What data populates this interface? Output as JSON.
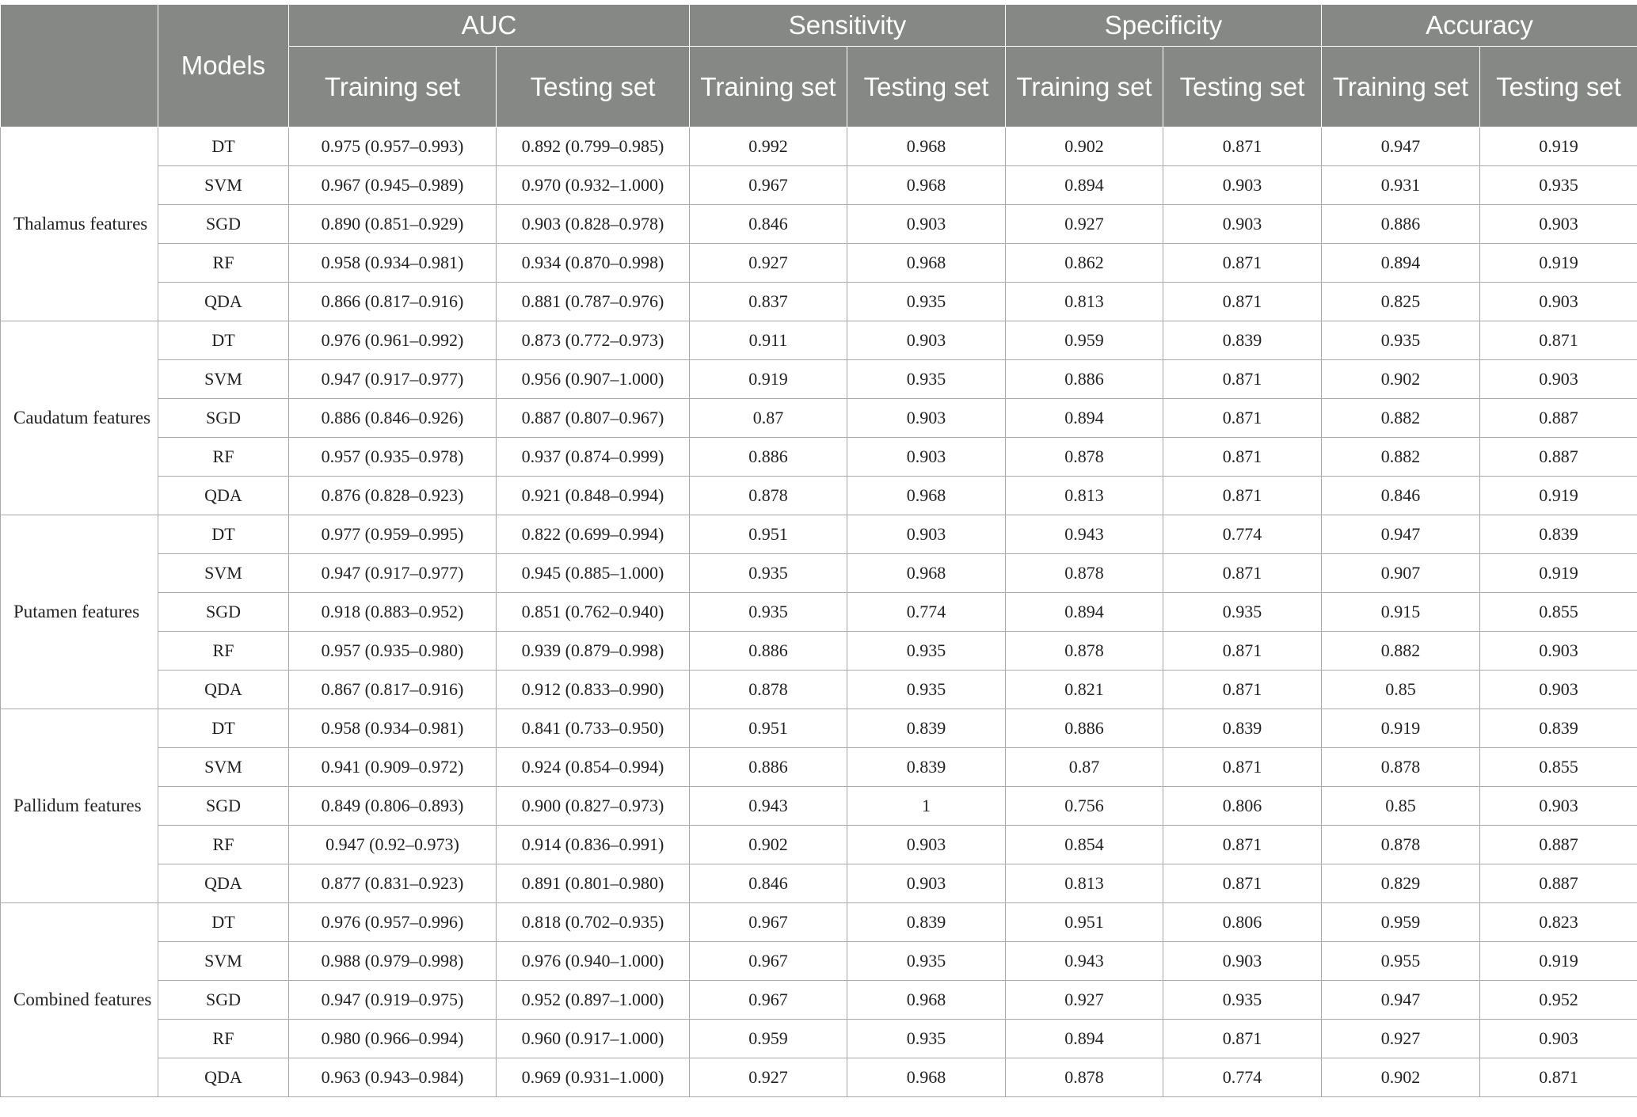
{
  "header": {
    "models": "Models",
    "metrics": [
      "AUC",
      "Sensitivity",
      "Specificity",
      "Accuracy"
    ],
    "subcols": [
      [
        "Training set",
        "Testing set"
      ],
      [
        "Training set",
        "Testing set"
      ],
      [
        "Training set",
        "Testing set"
      ],
      [
        "Training set",
        "Testing set"
      ]
    ]
  },
  "groups": [
    {
      "label": "Thalamus features",
      "rows": [
        [
          "DT",
          "0.975 (0.957–0.993)",
          "0.892 (0.799–0.985)",
          "0.992",
          "0.968",
          "0.902",
          "0.871",
          "0.947",
          "0.919"
        ],
        [
          "SVM",
          "0.967 (0.945–0.989)",
          "0.970 (0.932–1.000)",
          "0.967",
          "0.968",
          "0.894",
          "0.903",
          "0.931",
          "0.935"
        ],
        [
          "SGD",
          "0.890 (0.851–0.929)",
          "0.903 (0.828–0.978)",
          "0.846",
          "0.903",
          "0.927",
          "0.903",
          "0.886",
          "0.903"
        ],
        [
          "RF",
          "0.958 (0.934–0.981)",
          "0.934 (0.870–0.998)",
          "0.927",
          "0.968",
          "0.862",
          "0.871",
          "0.894",
          "0.919"
        ],
        [
          "QDA",
          "0.866 (0.817–0.916)",
          "0.881 (0.787–0.976)",
          "0.837",
          "0.935",
          "0.813",
          "0.871",
          "0.825",
          "0.903"
        ]
      ]
    },
    {
      "label": "Caudatum features",
      "rows": [
        [
          "DT",
          "0.976 (0.961–0.992)",
          "0.873 (0.772–0.973)",
          "0.911",
          "0.903",
          "0.959",
          "0.839",
          "0.935",
          "0.871"
        ],
        [
          "SVM",
          "0.947 (0.917–0.977)",
          "0.956 (0.907–1.000)",
          "0.919",
          "0.935",
          "0.886",
          "0.871",
          "0.902",
          "0.903"
        ],
        [
          "SGD",
          "0.886 (0.846–0.926)",
          "0.887 (0.807–0.967)",
          "0.87",
          "0.903",
          "0.894",
          "0.871",
          "0.882",
          "0.887"
        ],
        [
          "RF",
          "0.957 (0.935–0.978)",
          "0.937 (0.874–0.999)",
          "0.886",
          "0.903",
          "0.878",
          "0.871",
          "0.882",
          "0.887"
        ],
        [
          "QDA",
          "0.876 (0.828–0.923)",
          "0.921 (0.848–0.994)",
          "0.878",
          "0.968",
          "0.813",
          "0.871",
          "0.846",
          "0.919"
        ]
      ]
    },
    {
      "label": "Putamen features",
      "rows": [
        [
          "DT",
          "0.977 (0.959–0.995)",
          "0.822 (0.699–0.994)",
          "0.951",
          "0.903",
          "0.943",
          "0.774",
          "0.947",
          "0.839"
        ],
        [
          "SVM",
          "0.947 (0.917–0.977)",
          "0.945 (0.885–1.000)",
          "0.935",
          "0.968",
          "0.878",
          "0.871",
          "0.907",
          "0.919"
        ],
        [
          "SGD",
          "0.918 (0.883–0.952)",
          "0.851 (0.762–0.940)",
          "0.935",
          "0.774",
          "0.894",
          "0.935",
          "0.915",
          "0.855"
        ],
        [
          "RF",
          "0.957 (0.935–0.980)",
          "0.939 (0.879–0.998)",
          "0.886",
          "0.935",
          "0.878",
          "0.871",
          "0.882",
          "0.903"
        ],
        [
          "QDA",
          "0.867 (0.817–0.916)",
          "0.912 (0.833–0.990)",
          "0.878",
          "0.935",
          "0.821",
          "0.871",
          "0.85",
          "0.903"
        ]
      ]
    },
    {
      "label": "Pallidum features",
      "rows": [
        [
          "DT",
          "0.958 (0.934–0.981)",
          "0.841 (0.733–0.950)",
          "0.951",
          "0.839",
          "0.886",
          "0.839",
          "0.919",
          "0.839"
        ],
        [
          "SVM",
          "0.941 (0.909–0.972)",
          "0.924 (0.854–0.994)",
          "0.886",
          "0.839",
          "0.87",
          "0.871",
          "0.878",
          "0.855"
        ],
        [
          "SGD",
          "0.849 (0.806–0.893)",
          "0.900 (0.827–0.973)",
          "0.943",
          "1",
          "0.756",
          "0.806",
          "0.85",
          "0.903"
        ],
        [
          "RF",
          "0.947 (0.92–0.973)",
          "0.914 (0.836–0.991)",
          "0.902",
          "0.903",
          "0.854",
          "0.871",
          "0.878",
          "0.887"
        ],
        [
          "QDA",
          "0.877 (0.831–0.923)",
          "0.891 (0.801–0.980)",
          "0.846",
          "0.903",
          "0.813",
          "0.871",
          "0.829",
          "0.887"
        ]
      ]
    },
    {
      "label": "Combined features",
      "rows": [
        [
          "DT",
          "0.976 (0.957–0.996)",
          "0.818 (0.702–0.935)",
          "0.967",
          "0.839",
          "0.951",
          "0.806",
          "0.959",
          "0.823"
        ],
        [
          "SVM",
          "0.988 (0.979–0.998)",
          "0.976 (0.940–1.000)",
          "0.967",
          "0.935",
          "0.943",
          "0.903",
          "0.955",
          "0.919"
        ],
        [
          "SGD",
          "0.947 (0.919–0.975)",
          "0.952 (0.897–1.000)",
          "0.967",
          "0.968",
          "0.927",
          "0.935",
          "0.947",
          "0.952"
        ],
        [
          "RF",
          "0.980 (0.966–0.994)",
          "0.960 (0.917–1.000)",
          "0.959",
          "0.935",
          "0.894",
          "0.871",
          "0.927",
          "0.903"
        ],
        [
          "QDA",
          "0.963 (0.943–0.984)",
          "0.969 (0.931–1.000)",
          "0.927",
          "0.968",
          "0.878",
          "0.774",
          "0.902",
          "0.871"
        ]
      ]
    }
  ]
}
